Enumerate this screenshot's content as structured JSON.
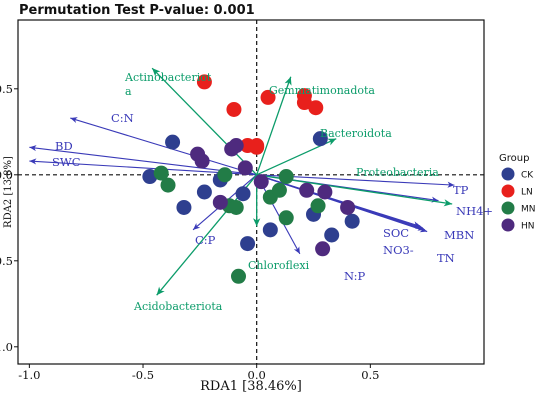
{
  "chart_data": {
    "type": "scatter",
    "title": "Permutation Test P-value: 0.001",
    "xlabel": "RDA1 [38.46%]",
    "ylabel": "RDA2 [13.8%]",
    "xlim": [
      -1.05,
      1.0
    ],
    "ylim": [
      -1.1,
      0.9
    ],
    "xticks": [
      -1.0,
      -0.5,
      0.0,
      0.5
    ],
    "yticks": [
      -1.0,
      -0.5,
      0.0,
      0.5
    ],
    "zero_lines": "dashed",
    "grid": false,
    "legend": {
      "title": "Group",
      "position": "right"
    },
    "groups": [
      {
        "name": "CK",
        "color": "#2e3f8f",
        "points": [
          [
            -0.37,
            0.19
          ],
          [
            -0.47,
            -0.01
          ],
          [
            -0.16,
            -0.03
          ],
          [
            -0.23,
            -0.1
          ],
          [
            -0.32,
            -0.19
          ],
          [
            -0.06,
            -0.11
          ],
          [
            -0.04,
            -0.4
          ],
          [
            0.06,
            -0.32
          ],
          [
            0.28,
            0.21
          ],
          [
            0.25,
            -0.23
          ],
          [
            0.33,
            -0.35
          ],
          [
            0.42,
            -0.27
          ]
        ]
      },
      {
        "name": "LN",
        "color": "#e8201c",
        "points": [
          [
            -0.23,
            0.54
          ],
          [
            -0.1,
            0.38
          ],
          [
            0.05,
            0.45
          ],
          [
            0.21,
            0.46
          ],
          [
            0.21,
            0.42
          ],
          [
            0.26,
            0.39
          ],
          [
            0.0,
            0.16
          ],
          [
            0.0,
            0.17
          ],
          [
            -0.04,
            0.17
          ]
        ]
      },
      {
        "name": "MN",
        "color": "#227c47",
        "points": [
          [
            -0.42,
            0.01
          ],
          [
            -0.39,
            -0.06
          ],
          [
            -0.14,
            0.0
          ],
          [
            -0.12,
            -0.18
          ],
          [
            -0.09,
            -0.19
          ],
          [
            0.06,
            -0.13
          ],
          [
            0.1,
            -0.09
          ],
          [
            0.13,
            -0.25
          ],
          [
            0.27,
            -0.18
          ],
          [
            -0.08,
            -0.59
          ],
          [
            0.13,
            -0.01
          ]
        ]
      },
      {
        "name": "HN",
        "color": "#4e2a7e",
        "points": [
          [
            -0.26,
            0.12
          ],
          [
            -0.24,
            0.08
          ],
          [
            -0.11,
            0.15
          ],
          [
            -0.09,
            0.17
          ],
          [
            -0.05,
            0.04
          ],
          [
            0.02,
            -0.04
          ],
          [
            -0.16,
            -0.16
          ],
          [
            0.22,
            -0.09
          ],
          [
            0.3,
            -0.1
          ],
          [
            0.4,
            -0.19
          ],
          [
            0.29,
            -0.43
          ]
        ]
      }
    ],
    "env_vectors": [
      {
        "label": "BD",
        "x": -1.0,
        "y": 0.16
      },
      {
        "label": "SWC",
        "x": -1.0,
        "y": 0.08
      },
      {
        "label": "C:N",
        "x": -0.82,
        "y": 0.33
      },
      {
        "label": "C:P",
        "x": -0.28,
        "y": -0.32
      },
      {
        "label": "N:P",
        "x": 0.19,
        "y": -0.46
      },
      {
        "label": "TP",
        "x": 0.87,
        "y": -0.06
      },
      {
        "label": "NH4+",
        "x": 0.8,
        "y": -0.15
      },
      {
        "label": "SOC",
        "x": 0.72,
        "y": -0.3
      },
      {
        "label": "NO3-",
        "x": 0.73,
        "y": -0.31
      },
      {
        "label": "MBN",
        "x": 0.74,
        "y": -0.32
      },
      {
        "label": "TN",
        "x": 0.75,
        "y": -0.33
      }
    ],
    "taxa_vectors": [
      {
        "label": "Actinobacteriota",
        "x": -0.46,
        "y": 0.62
      },
      {
        "label": "Gemmatimonadota",
        "x": 0.15,
        "y": 0.57
      },
      {
        "label": "Bacteroidota",
        "x": 0.35,
        "y": 0.21
      },
      {
        "label": "Proteobacteria",
        "x": 0.86,
        "y": -0.17
      },
      {
        "label": "Chloroflexi",
        "x": 0.0,
        "y": -0.3
      },
      {
        "label": "Acidobacteriota",
        "x": -0.44,
        "y": -0.7
      }
    ]
  }
}
